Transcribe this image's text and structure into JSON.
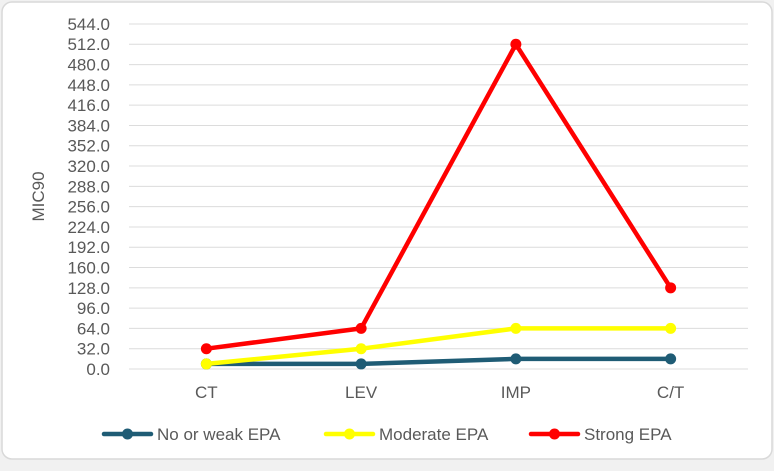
{
  "chart_data": {
    "type": "line",
    "title": "",
    "categories": [
      "CT",
      "LEV",
      "IMP",
      "C/T"
    ],
    "series": [
      {
        "name": "No or weak EPA",
        "color": "#1F5C75",
        "values": [
          8,
          8,
          16,
          16
        ]
      },
      {
        "name": "Moderate EPA",
        "color": "#FFFF00",
        "values": [
          8,
          32,
          64,
          64
        ]
      },
      {
        "name": "Strong EPA",
        "color": "#FF0000",
        "values": [
          32,
          64,
          512,
          128
        ]
      }
    ],
    "xlabel": "",
    "ylabel": "MIC90",
    "ylim": [
      0,
      544
    ],
    "ytick_step": 32,
    "ytick_labels": [
      "544.0",
      "512.0",
      "480.0",
      "448.0",
      "416.0",
      "384.0",
      "352.0",
      "320.0",
      "288.0",
      "256.0",
      "224.0",
      "192.0",
      "160.0",
      "128.0",
      "96.0",
      "64.0",
      "32.0",
      "0.0"
    ],
    "grid": true,
    "legend_position": "bottom",
    "legend": [
      "No or weak EPA",
      "Moderate EPA",
      "Strong EPA"
    ]
  },
  "styles": {
    "text_color": "#595959",
    "gridline_color": "#DCDCDC",
    "border_color": "#D9D9D9",
    "chart_background": "#FFFFFF",
    "page_background": "#F1F1F1"
  }
}
